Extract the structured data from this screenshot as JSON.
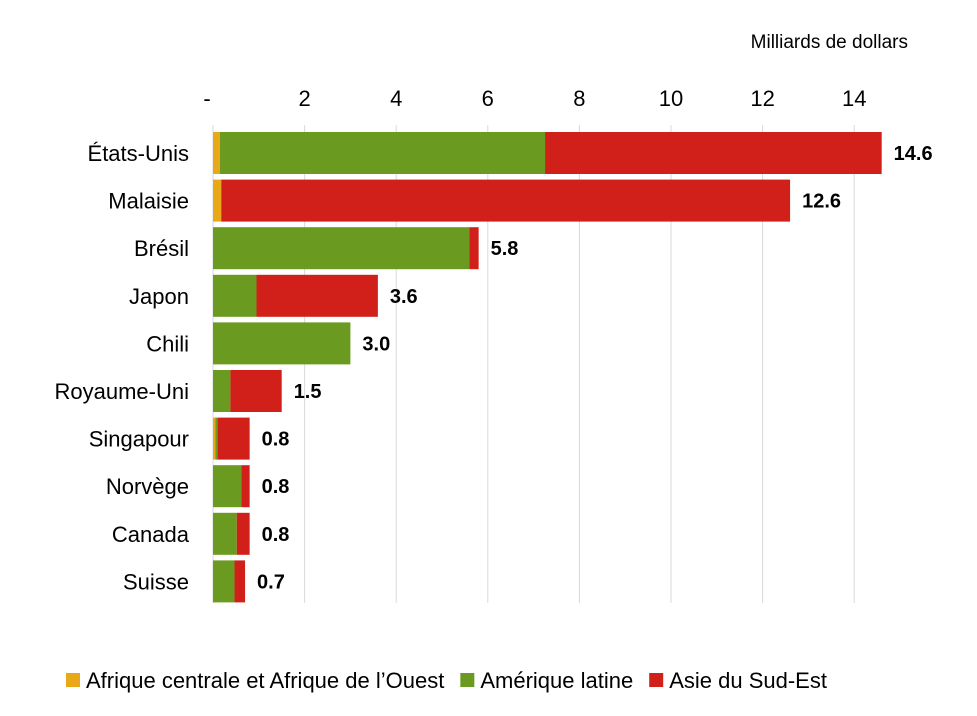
{
  "chart_data": {
    "type": "bar",
    "orientation": "horizontal",
    "stacked": true,
    "unit_label": "Milliards de dollars",
    "x_ticks": [
      "-",
      "2",
      "4",
      "6",
      "8",
      "10",
      "12",
      "14"
    ],
    "xlim": [
      0,
      15
    ],
    "grid": "vertical",
    "legend_position": "bottom",
    "categories": [
      "États-Unis",
      "Malaisie",
      "Brésil",
      "Japon",
      "Chili",
      "Royaume-Uni",
      "Singapour",
      "Norvège",
      "Canada",
      "Suisse"
    ],
    "series": [
      {
        "name": "Afrique centrale et Afrique de l’Ouest",
        "color": "#E8A817",
        "values": [
          0.15,
          0.18,
          0,
          0,
          0,
          0,
          0.05,
          0,
          0,
          0
        ]
      },
      {
        "name": "Amérique latine",
        "color": "#6A9A1F",
        "values": [
          7.1,
          0,
          5.6,
          0.95,
          3.0,
          0.38,
          0.05,
          0.62,
          0.52,
          0.47
        ]
      },
      {
        "name": "Asie du Sud-Est",
        "color": "#D11F1A",
        "values": [
          7.35,
          12.42,
          0.2,
          2.65,
          0,
          1.12,
          0.7,
          0.18,
          0.28,
          0.23
        ]
      }
    ],
    "totals": [
      "14.6",
      "12.6",
      "5.8",
      "3.6",
      "3.0",
      "1.5",
      "0.8",
      "0.8",
      "0.8",
      "0.7"
    ]
  }
}
